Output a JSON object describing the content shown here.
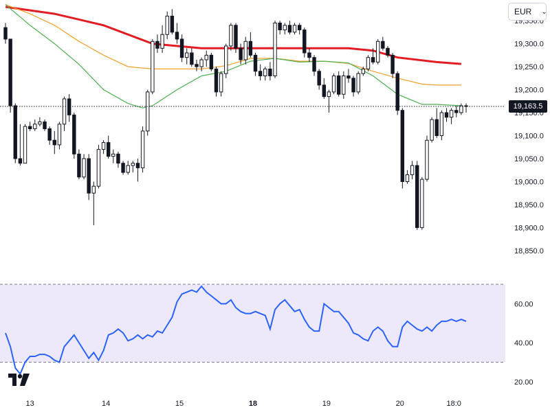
{
  "currency_selector": {
    "value": "EUR",
    "chevron_icon": "chevron-down-icon"
  },
  "last_price_label": "19,163.5",
  "chart_data": [
    {
      "type": "candlestick",
      "panel": "price",
      "y_ticks": [
        "18,850.0",
        "18,900.0",
        "18,950.0",
        "19,000.0",
        "19,050.0",
        "19,100.0",
        "19,150.0",
        "19,200.0",
        "19,250.0",
        "19,300.0",
        "19,350.0"
      ],
      "y_tick_values": [
        18850,
        18900,
        18950,
        19000,
        19050,
        19100,
        19150,
        19200,
        19250,
        19300,
        19350
      ],
      "ylim": [
        18820,
        19395
      ],
      "x_ticks": [
        "13",
        "14",
        "15",
        "18",
        "19",
        "20",
        "18:0"
      ],
      "x_tick_index": [
        5,
        20.5,
        35.5,
        50.5,
        65.5,
        80.5,
        91.5
      ],
      "last_price": 19163.5,
      "candles": [
        [
          19335,
          19345,
          19300,
          19310
        ],
        [
          19310,
          19310,
          19150,
          19165
        ],
        [
          19165,
          19170,
          19040,
          19050
        ],
        [
          19050,
          19125,
          19035,
          19040
        ],
        [
          19040,
          19125,
          19040,
          19120
        ],
        [
          19120,
          19130,
          19110,
          19115
        ],
        [
          19115,
          19135,
          19110,
          19125
        ],
        [
          19125,
          19140,
          19120,
          19130
        ],
        [
          19130,
          19135,
          19110,
          19115
        ],
        [
          19115,
          19120,
          19080,
          19090
        ],
        [
          19090,
          19110,
          19060,
          19080
        ],
        [
          19080,
          19130,
          19070,
          19125
        ],
        [
          19125,
          19185,
          19110,
          19180
        ],
        [
          19180,
          19190,
          19130,
          19145
        ],
        [
          19145,
          19150,
          19050,
          19060
        ],
        [
          19060,
          19070,
          19005,
          19010
        ],
        [
          19010,
          19060,
          19005,
          19050
        ],
        [
          19050,
          19060,
          18960,
          18975
        ],
        [
          18975,
          19000,
          18905,
          18990
        ],
        [
          18990,
          19080,
          18985,
          19070
        ],
        [
          19070,
          19090,
          19060,
          19085
        ],
        [
          19085,
          19100,
          19050,
          19055
        ],
        [
          19055,
          19070,
          19040,
          19060
        ],
        [
          19060,
          19065,
          19030,
          19040
        ],
        [
          19040,
          19045,
          19015,
          19020
        ],
        [
          19020,
          19045,
          19015,
          19035
        ],
        [
          19035,
          19045,
          19020,
          19040
        ],
        [
          19040,
          19050,
          19000,
          19030
        ],
        [
          19030,
          19120,
          19020,
          19110
        ],
        [
          19110,
          19200,
          19100,
          19195
        ],
        [
          19195,
          19310,
          19190,
          19305
        ],
        [
          19305,
          19320,
          19280,
          19290
        ],
        [
          19290,
          19340,
          19280,
          19320
        ],
        [
          19320,
          19370,
          19310,
          19360
        ],
        [
          19360,
          19375,
          19320,
          19325
        ],
        [
          19325,
          19345,
          19300,
          19310
        ],
        [
          19310,
          19320,
          19260,
          19270
        ],
        [
          19270,
          19290,
          19255,
          19280
        ],
        [
          19280,
          19290,
          19250,
          19255
        ],
        [
          19255,
          19265,
          19240,
          19250
        ],
        [
          19250,
          19270,
          19240,
          19265
        ],
        [
          19265,
          19285,
          19250,
          19275
        ],
        [
          19275,
          19280,
          19240,
          19245
        ],
        [
          19245,
          19250,
          19185,
          19195
        ],
        [
          19195,
          19240,
          19185,
          19235
        ],
        [
          19235,
          19300,
          19225,
          19295
        ],
        [
          19295,
          19345,
          19285,
          19340
        ],
        [
          19340,
          19345,
          19280,
          19290
        ],
        [
          19290,
          19300,
          19255,
          19265
        ],
        [
          19265,
          19315,
          19255,
          19305
        ],
        [
          19305,
          19325,
          19270,
          19275
        ],
        [
          19275,
          19280,
          19230,
          19240
        ],
        [
          19240,
          19255,
          19220,
          19230
        ],
        [
          19230,
          19250,
          19220,
          19245
        ],
        [
          19245,
          19260,
          19220,
          19230
        ],
        [
          19230,
          19350,
          19225,
          19345
        ],
        [
          19345,
          19350,
          19320,
          19330
        ],
        [
          19330,
          19345,
          19320,
          19340
        ],
        [
          19340,
          19350,
          19320,
          19325
        ],
        [
          19325,
          19345,
          19320,
          19340
        ],
        [
          19340,
          19345,
          19320,
          19330
        ],
        [
          19330,
          19335,
          19270,
          19280
        ],
        [
          19280,
          19290,
          19260,
          19270
        ],
        [
          19270,
          19275,
          19230,
          19240
        ],
        [
          19240,
          19245,
          19200,
          19210
        ],
        [
          19210,
          19225,
          19180,
          19185
        ],
        [
          19185,
          19200,
          19150,
          19195
        ],
        [
          19195,
          19235,
          19190,
          19230
        ],
        [
          19230,
          19240,
          19185,
          19190
        ],
        [
          19190,
          19240,
          19180,
          19230
        ],
        [
          19230,
          19245,
          19215,
          19225
        ],
        [
          19225,
          19230,
          19185,
          19195
        ],
        [
          19195,
          19240,
          19190,
          19235
        ],
        [
          19235,
          19250,
          19230,
          19245
        ],
        [
          19245,
          19275,
          19240,
          19270
        ],
        [
          19270,
          19290,
          19255,
          19260
        ],
        [
          19260,
          19310,
          19255,
          19305
        ],
        [
          19305,
          19315,
          19285,
          19290
        ],
        [
          19290,
          19295,
          19270,
          19275
        ],
        [
          19275,
          19280,
          19225,
          19235
        ],
        [
          19235,
          19240,
          19145,
          19155
        ],
        [
          19155,
          19160,
          18985,
          19000
        ],
        [
          19000,
          19025,
          18995,
          19015
        ],
        [
          19015,
          19045,
          19005,
          19035
        ],
        [
          19035,
          19045,
          18895,
          18900
        ],
        [
          18900,
          19010,
          18895,
          19005
        ],
        [
          19005,
          19100,
          19000,
          19090
        ],
        [
          19090,
          19140,
          19085,
          19135
        ],
        [
          19135,
          19160,
          19095,
          19100
        ],
        [
          19100,
          19155,
          19090,
          19150
        ],
        [
          19150,
          19160,
          19130,
          19140
        ],
        [
          19140,
          19160,
          19125,
          19155
        ],
        [
          19155,
          19165,
          19140,
          19150
        ],
        [
          19150,
          19170,
          19145,
          19165
        ],
        [
          19165,
          19170,
          19150,
          19163.5
        ]
      ],
      "moving_averages": [
        {
          "color": "#e31b23",
          "values": [
            [
              0,
              19380
            ],
            [
              10,
              19365
            ],
            [
              20,
              19340
            ],
            [
              30,
              19300
            ],
            [
              40,
              19290
            ],
            [
              50,
              19290
            ],
            [
              60,
              19290
            ],
            [
              70,
              19290
            ],
            [
              75,
              19285
            ],
            [
              80,
              19270
            ],
            [
              88,
              19260
            ],
            [
              93,
              19256
            ]
          ]
        },
        {
          "color": "#f5a02d",
          "values": [
            [
              0,
              19385
            ],
            [
              5,
              19365
            ],
            [
              10,
              19340
            ],
            [
              15,
              19305
            ],
            [
              20,
              19275
            ],
            [
              25,
              19250
            ],
            [
              30,
              19245
            ],
            [
              35,
              19245
            ],
            [
              40,
              19245
            ],
            [
              45,
              19252
            ],
            [
              50,
              19268
            ],
            [
              55,
              19268
            ],
            [
              60,
              19262
            ],
            [
              65,
              19262
            ],
            [
              70,
              19257
            ],
            [
              75,
              19240
            ],
            [
              80,
              19225
            ],
            [
              85,
              19212
            ],
            [
              88,
              19210
            ],
            [
              93,
              19210
            ]
          ]
        },
        {
          "color": "#4caf50",
          "values": [
            [
              0,
              19385
            ],
            [
              5,
              19340
            ],
            [
              10,
              19300
            ],
            [
              15,
              19255
            ],
            [
              20,
              19200
            ],
            [
              25,
              19170
            ],
            [
              28,
              19160
            ],
            [
              30,
              19165
            ],
            [
              35,
              19200
            ],
            [
              40,
              19230
            ],
            [
              45,
              19240
            ],
            [
              50,
              19262
            ],
            [
              55,
              19268
            ],
            [
              60,
              19260
            ],
            [
              65,
              19262
            ],
            [
              70,
              19258
            ],
            [
              75,
              19230
            ],
            [
              80,
              19190
            ],
            [
              85,
              19168
            ],
            [
              88,
              19168
            ],
            [
              93,
              19165
            ]
          ]
        }
      ]
    },
    {
      "type": "line",
      "panel": "oscillator",
      "y_ticks": [
        "20.00",
        "40.00",
        "60.00"
      ],
      "y_tick_values": [
        20,
        40,
        60
      ],
      "ylim": [
        15,
        76
      ],
      "band": [
        30,
        70
      ],
      "line_color": "#2962ff",
      "band_color": "#ede9fb",
      "values": [
        45,
        38,
        27,
        24,
        30,
        33,
        33,
        34,
        34,
        33,
        31,
        30,
        38,
        41,
        44,
        40,
        36,
        32,
        35,
        31,
        36,
        44,
        45,
        47,
        45,
        41,
        42,
        44,
        42,
        44,
        43,
        46,
        45,
        49,
        53,
        61,
        65,
        66,
        67,
        66,
        69,
        66,
        64,
        62,
        60,
        60,
        62,
        58,
        56,
        55,
        55,
        56,
        55,
        54,
        47,
        57,
        60,
        62,
        59,
        56,
        57,
        52,
        48,
        46,
        46,
        60,
        58,
        56,
        56,
        53,
        50,
        45,
        44,
        42,
        41,
        46,
        48,
        46,
        41,
        38,
        38,
        48,
        51,
        49,
        47,
        46,
        48,
        46,
        49,
        51,
        51,
        52,
        51,
        52,
        51
      ],
      "x_ticks": [
        "13",
        "14",
        "15",
        "18",
        "19",
        "20",
        "18:0"
      ]
    }
  ]
}
